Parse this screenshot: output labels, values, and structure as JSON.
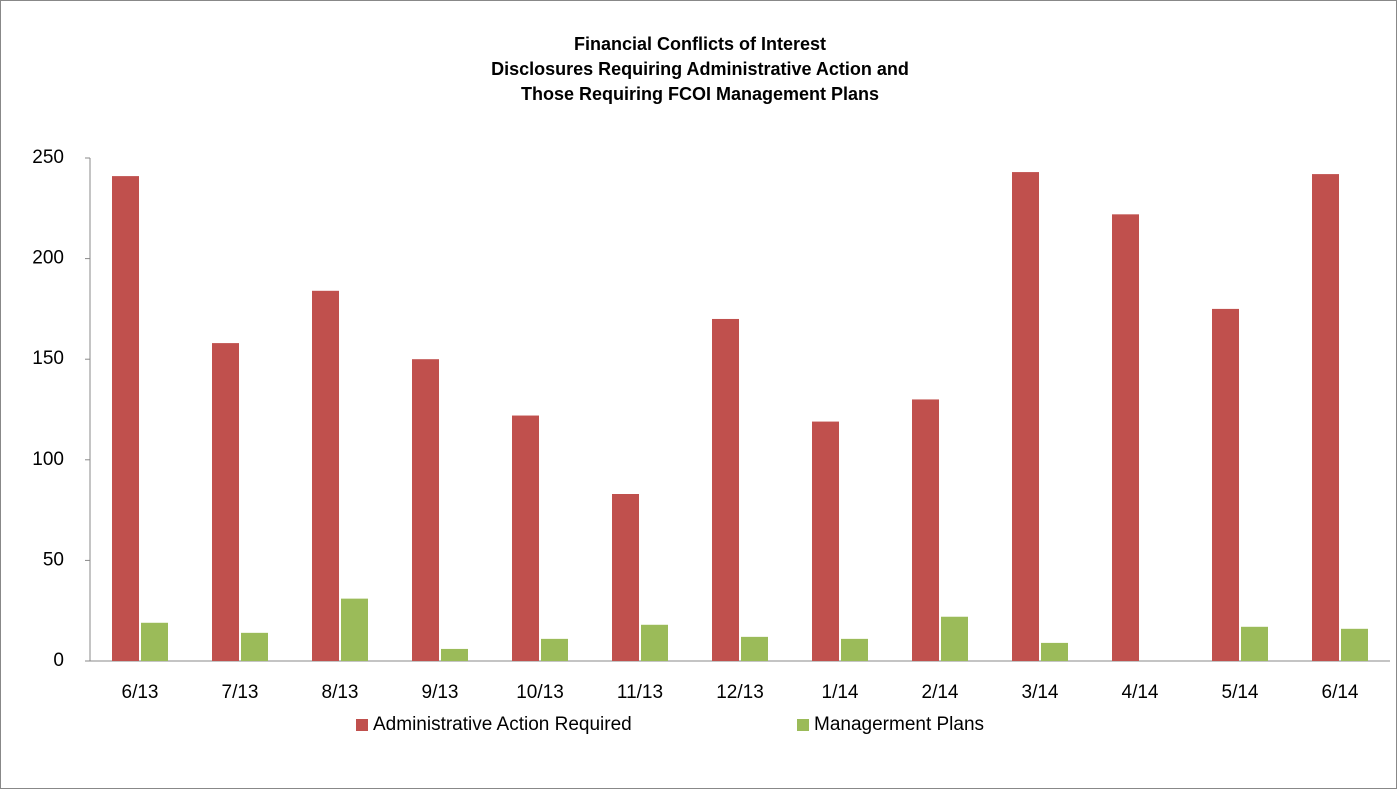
{
  "chart_data": {
    "type": "bar",
    "title": [
      "Financial Conflicts of Interest",
      "Disclosures Requiring Administrative Action and",
      "Those Requiring FCOI Management Plans"
    ],
    "categories": [
      "6/13",
      "7/13",
      "8/13",
      "9/13",
      "10/13",
      "11/13",
      "12/13",
      "1/14",
      "2/14",
      "3/14",
      "4/14",
      "5/14",
      "6/14"
    ],
    "series": [
      {
        "name": "Administrative Action Required",
        "color": "#c0504d",
        "values": [
          241,
          158,
          184,
          150,
          122,
          83,
          170,
          119,
          130,
          243,
          222,
          175,
          242
        ]
      },
      {
        "name": "Managerment Plans",
        "color": "#9bbb59",
        "values": [
          19,
          14,
          31,
          6,
          11,
          18,
          12,
          11,
          22,
          9,
          0,
          17,
          16
        ]
      }
    ],
    "ylim": [
      0,
      250
    ],
    "yticks": [
      0,
      50,
      100,
      150,
      200,
      250
    ],
    "grid": false,
    "legend": "bottom"
  }
}
